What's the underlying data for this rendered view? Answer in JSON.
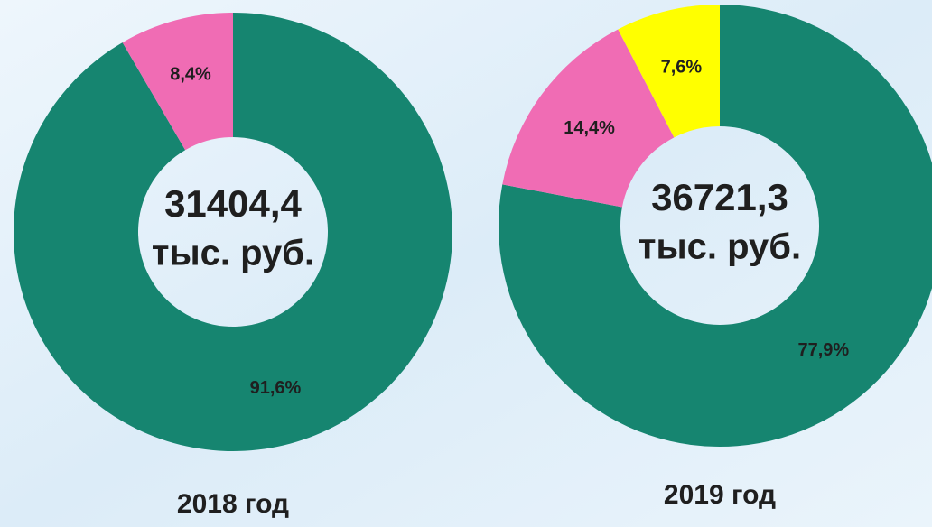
{
  "chart_data": [
    {
      "type": "donut",
      "values": [
        91.6,
        8.4
      ],
      "value_labels": [
        "91,6%",
        "8,4%"
      ],
      "colors": [
        "#168570",
        "#f06cb4"
      ],
      "center_value": "31404,4",
      "center_unit": "тыс. руб.",
      "caption": "2018 год"
    },
    {
      "type": "donut",
      "values": [
        77.9,
        14.4,
        7.6
      ],
      "value_labels": [
        "77,9%",
        "14,4%",
        "7,6%"
      ],
      "colors": [
        "#168570",
        "#f06cb4",
        "#ffff00"
      ],
      "center_value": "36721,3",
      "center_unit": "тыс. руб.",
      "caption": "2019 год"
    }
  ]
}
